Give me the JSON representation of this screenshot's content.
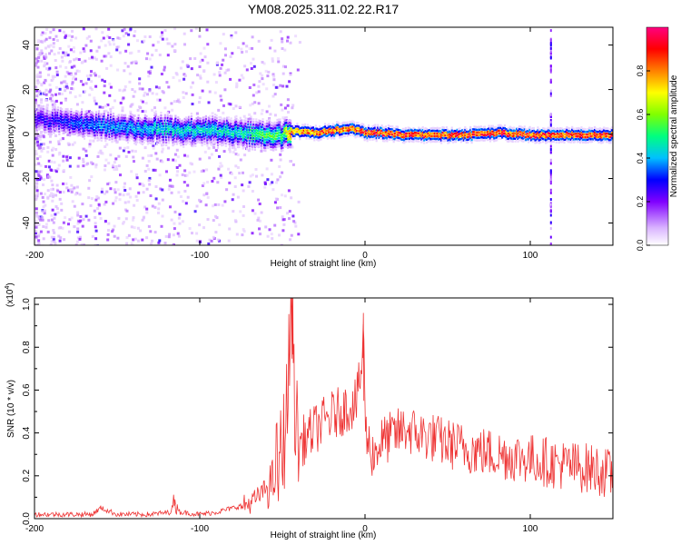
{
  "title": "YM08.2025.311.02.22.R17",
  "chart_data": [
    {
      "type": "heatmap",
      "xlabel": "Height of straight line (km)",
      "ylabel": "Frequency (Hz)",
      "xlim": [
        -200,
        150
      ],
      "ylim": [
        -50,
        48
      ],
      "xticks": [
        -200,
        -100,
        0,
        100
      ],
      "yticks": [
        -40,
        -20,
        0,
        20,
        40
      ],
      "grid": false,
      "ridge": {
        "description_free": true,
        "x": [
          -200,
          -185,
          -170,
          -155,
          -140,
          -125,
          -110,
          -95,
          -80,
          -70,
          -60,
          -50,
          -45,
          -30,
          -20,
          -10,
          -5,
          0,
          10,
          20,
          40,
          60,
          80,
          100,
          120,
          150
        ],
        "frequency": [
          7,
          6,
          5,
          4,
          3,
          3,
          2,
          2,
          1,
          1,
          0,
          0,
          2,
          1,
          2,
          3,
          2,
          1,
          1,
          0,
          0,
          0,
          1,
          0,
          0,
          0
        ],
        "amplitude": [
          0.25,
          0.3,
          0.35,
          0.4,
          0.4,
          0.45,
          0.45,
          0.45,
          0.45,
          0.5,
          0.55,
          0.55,
          0.85,
          0.9,
          0.95,
          0.9,
          0.95,
          0.95,
          0.95,
          0.95,
          0.95,
          0.95,
          0.95,
          0.95,
          0.95,
          0.95
        ]
      },
      "vertical_line_x": 112,
      "colorbar": {
        "label": "Normalized spectral amplitude",
        "range": [
          0,
          1
        ],
        "ticks": [
          0.0,
          0.2,
          0.4,
          0.6,
          0.8
        ],
        "tick_labels": [
          "0.0",
          "0.2",
          "0.4",
          "0.6",
          "0.8"
        ],
        "colors": [
          "#ffffff",
          "#d9b3ff",
          "#8000ff",
          "#0000ff",
          "#00c0ff",
          "#00ff80",
          "#80ff00",
          "#ffff00",
          "#ff8000",
          "#ff0000",
          "#ff0080"
        ]
      }
    },
    {
      "type": "line",
      "xlabel": "Height of straight line (km)",
      "ylabel": "SNR (10 * v/v)",
      "y_multiplier_label": "(x10",
      "y_multiplier_exp": "4",
      "xlim": [
        -200,
        150
      ],
      "ylim": [
        0,
        1.03
      ],
      "xticks": [
        -200,
        -100,
        0,
        100
      ],
      "yticks": [
        0.0,
        0.2,
        0.4,
        0.6,
        0.8,
        1.0
      ],
      "ytick_labels": [
        "0.0",
        "0.2",
        "0.4",
        "0.6",
        "0.8",
        "1.0"
      ],
      "grid": false,
      "color": "#ee3333",
      "series": [
        {
          "x": [
            -200,
            -180,
            -165,
            -160,
            -150,
            -130,
            -118,
            -115,
            -112,
            -100,
            -90,
            -80,
            -70,
            -65,
            -60,
            -55,
            -50,
            -47,
            -45,
            -44,
            -43,
            -42,
            -40,
            -35,
            -30,
            -25,
            -20,
            -15,
            -10,
            -5,
            -2,
            -1,
            0,
            2,
            5,
            10,
            20,
            25,
            30,
            40,
            50,
            60,
            80,
            100,
            120,
            140,
            150
          ],
          "y": [
            0.02,
            0.02,
            0.02,
            0.05,
            0.02,
            0.02,
            0.03,
            0.08,
            0.03,
            0.02,
            0.03,
            0.05,
            0.07,
            0.1,
            0.14,
            0.18,
            0.3,
            0.55,
            0.9,
            1.03,
            0.7,
            0.45,
            0.35,
            0.38,
            0.42,
            0.45,
            0.48,
            0.5,
            0.52,
            0.55,
            0.7,
            0.95,
            0.45,
            0.35,
            0.3,
            0.36,
            0.4,
            0.42,
            0.4,
            0.38,
            0.35,
            0.33,
            0.3,
            0.28,
            0.25,
            0.23,
            0.2
          ]
        }
      ]
    }
  ]
}
